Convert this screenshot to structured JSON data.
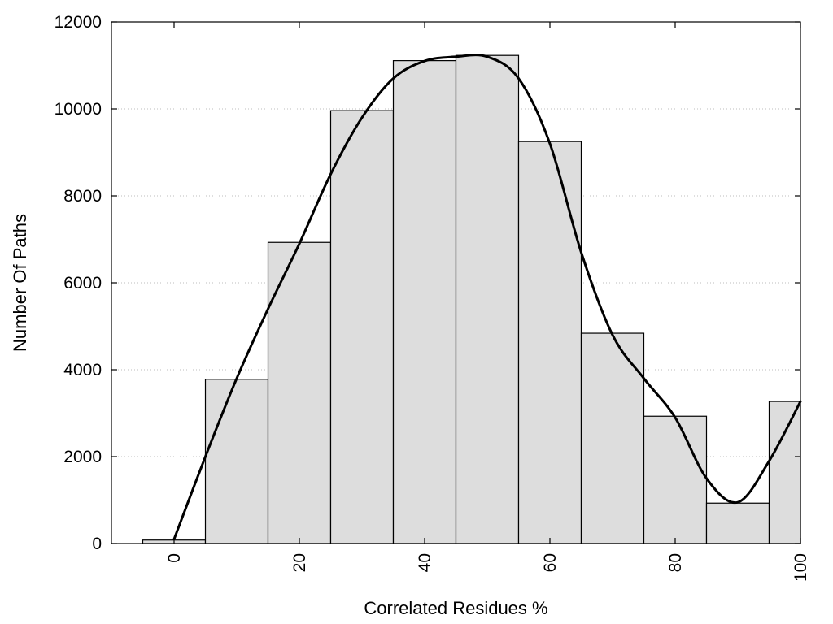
{
  "chart_data": {
    "type": "bar",
    "xlabel": "Correlated Residues %",
    "ylabel": "Number Of Paths",
    "xlim": [
      -10,
      100
    ],
    "ylim": [
      0,
      12000
    ],
    "x_ticks": [
      0,
      20,
      40,
      60,
      80,
      100
    ],
    "x_tick_labels": [
      "0",
      "20",
      "40",
      "60",
      "80",
      "100"
    ],
    "y_ticks": [
      0,
      2000,
      4000,
      6000,
      8000,
      10000,
      12000
    ],
    "y_tick_labels": [
      "0",
      "2000",
      "4000",
      "6000",
      "8000",
      "10000",
      "12000"
    ],
    "grid": "horizontal dotted",
    "bar_width": 10,
    "bars": [
      {
        "x": 0,
        "value": 80
      },
      {
        "x": 10,
        "value": 3780
      },
      {
        "x": 20,
        "value": 6930
      },
      {
        "x": 30,
        "value": 9960
      },
      {
        "x": 40,
        "value": 11110
      },
      {
        "x": 50,
        "value": 11230
      },
      {
        "x": 60,
        "value": 9250
      },
      {
        "x": 70,
        "value": 4840
      },
      {
        "x": 80,
        "value": 2930
      },
      {
        "x": 90,
        "value": 930
      },
      {
        "x": 100,
        "value": 3270
      }
    ],
    "curve": {
      "type": "line",
      "x": [
        0,
        5,
        10,
        15,
        20,
        25,
        30,
        35,
        40,
        45,
        50,
        55,
        60,
        65,
        70,
        75,
        80,
        85,
        90,
        95,
        100
      ],
      "values": [
        100,
        2000,
        3800,
        5400,
        6900,
        8500,
        9800,
        10700,
        11100,
        11200,
        11200,
        10700,
        9200,
        6700,
        4800,
        3800,
        2900,
        1500,
        950,
        1900,
        3270
      ]
    },
    "colors": {
      "bar_fill": "#dddddd",
      "bar_stroke": "#000000",
      "curve": "#000000"
    }
  }
}
